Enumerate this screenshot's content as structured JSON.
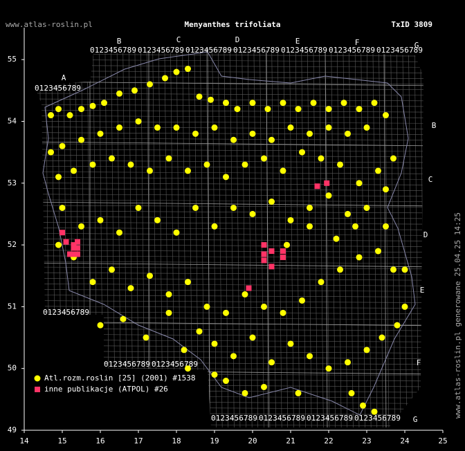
{
  "chart_data": {
    "type": "scatter",
    "source": "www.atlas-roslin.pl",
    "title": "Menyanthes trifoliata",
    "id_label": "TxID 3809",
    "footer": "www.atlas-roslin.pl generowane 25.04.25 14:25",
    "xlim": [
      14,
      25
    ],
    "ylim": [
      49,
      55.5
    ],
    "xticks": [
      14,
      15,
      16,
      17,
      18,
      19,
      20,
      21,
      22,
      23,
      24,
      25
    ],
    "yticks": [
      49,
      50,
      51,
      52,
      53,
      54,
      55
    ],
    "grid": true,
    "grid_letters": [
      "A",
      "B",
      "C",
      "D",
      "E",
      "F",
      "G"
    ],
    "grid_digits": "0123456789",
    "series": [
      {
        "name": "Atl.rozm.roslin [25] (2001) #1538",
        "color": "#ffff00",
        "marker": "circle",
        "points": [
          [
            14.7,
            54.1
          ],
          [
            14.9,
            54.2
          ],
          [
            15.2,
            54.1
          ],
          [
            15.5,
            54.2
          ],
          [
            15.8,
            54.25
          ],
          [
            16.1,
            54.3
          ],
          [
            16.5,
            54.45
          ],
          [
            16.9,
            54.5
          ],
          [
            17.3,
            54.6
          ],
          [
            17.7,
            54.7
          ],
          [
            18.0,
            54.8
          ],
          [
            18.3,
            54.85
          ],
          [
            18.6,
            54.4
          ],
          [
            18.9,
            54.35
          ],
          [
            19.3,
            54.3
          ],
          [
            19.6,
            54.2
          ],
          [
            20.0,
            54.3
          ],
          [
            20.4,
            54.2
          ],
          [
            20.8,
            54.3
          ],
          [
            21.2,
            54.2
          ],
          [
            21.6,
            54.3
          ],
          [
            22.0,
            54.2
          ],
          [
            22.4,
            54.3
          ],
          [
            22.8,
            54.2
          ],
          [
            23.2,
            54.3
          ],
          [
            23.5,
            54.1
          ],
          [
            23.0,
            53.9
          ],
          [
            22.5,
            53.8
          ],
          [
            22.0,
            53.9
          ],
          [
            21.5,
            53.8
          ],
          [
            21.0,
            53.9
          ],
          [
            20.5,
            53.7
          ],
          [
            20.0,
            53.8
          ],
          [
            19.5,
            53.7
          ],
          [
            19.0,
            53.9
          ],
          [
            18.5,
            53.8
          ],
          [
            18.0,
            53.9
          ],
          [
            17.5,
            53.9
          ],
          [
            17.0,
            54.0
          ],
          [
            16.5,
            53.9
          ],
          [
            16.0,
            53.8
          ],
          [
            15.5,
            53.7
          ],
          [
            15.0,
            53.6
          ],
          [
            14.7,
            53.5
          ],
          [
            14.9,
            53.1
          ],
          [
            15.3,
            53.2
          ],
          [
            15.8,
            53.3
          ],
          [
            16.3,
            53.4
          ],
          [
            16.8,
            53.3
          ],
          [
            17.3,
            53.2
          ],
          [
            17.8,
            53.4
          ],
          [
            18.3,
            53.2
          ],
          [
            18.8,
            53.3
          ],
          [
            19.3,
            53.1
          ],
          [
            19.8,
            53.3
          ],
          [
            20.3,
            53.4
          ],
          [
            20.8,
            53.2
          ],
          [
            21.3,
            53.5
          ],
          [
            21.8,
            53.4
          ],
          [
            22.3,
            53.3
          ],
          [
            22.8,
            53.0
          ],
          [
            23.3,
            53.2
          ],
          [
            23.7,
            53.4
          ],
          [
            23.5,
            52.9
          ],
          [
            23.0,
            52.6
          ],
          [
            22.5,
            52.5
          ],
          [
            22.0,
            52.8
          ],
          [
            21.5,
            52.6
          ],
          [
            21.0,
            52.4
          ],
          [
            20.5,
            52.7
          ],
          [
            20.0,
            52.5
          ],
          [
            19.5,
            52.6
          ],
          [
            19.0,
            52.3
          ],
          [
            18.5,
            52.6
          ],
          [
            18.0,
            52.2
          ],
          [
            17.5,
            52.4
          ],
          [
            17.0,
            52.6
          ],
          [
            16.5,
            52.2
          ],
          [
            16.0,
            52.4
          ],
          [
            15.5,
            52.3
          ],
          [
            15.0,
            52.6
          ],
          [
            14.9,
            52.0
          ],
          [
            15.3,
            51.8
          ],
          [
            15.8,
            51.4
          ],
          [
            16.3,
            51.6
          ],
          [
            16.8,
            51.3
          ],
          [
            17.3,
            51.5
          ],
          [
            17.8,
            51.2
          ],
          [
            18.3,
            51.4
          ],
          [
            18.8,
            51.0
          ],
          [
            19.3,
            50.9
          ],
          [
            19.8,
            51.2
          ],
          [
            20.3,
            51.0
          ],
          [
            20.8,
            50.9
          ],
          [
            21.3,
            51.1
          ],
          [
            21.8,
            51.4
          ],
          [
            22.3,
            51.6
          ],
          [
            22.8,
            51.8
          ],
          [
            23.3,
            51.9
          ],
          [
            23.7,
            51.6
          ],
          [
            24.0,
            51.0
          ],
          [
            23.8,
            50.7
          ],
          [
            23.4,
            50.5
          ],
          [
            23.0,
            50.3
          ],
          [
            22.5,
            50.1
          ],
          [
            22.0,
            50.0
          ],
          [
            21.5,
            50.2
          ],
          [
            21.0,
            50.4
          ],
          [
            20.5,
            50.1
          ],
          [
            20.0,
            50.5
          ],
          [
            19.5,
            50.2
          ],
          [
            19.0,
            50.4
          ],
          [
            18.6,
            50.6
          ],
          [
            18.2,
            50.3
          ],
          [
            17.8,
            50.9
          ],
          [
            19.3,
            49.8
          ],
          [
            19.8,
            49.6
          ],
          [
            20.3,
            49.7
          ],
          [
            21.2,
            49.6
          ],
          [
            22.6,
            49.6
          ],
          [
            22.9,
            49.4
          ],
          [
            23.2,
            49.3
          ],
          [
            19.0,
            49.9
          ],
          [
            18.3,
            50.0
          ],
          [
            20.9,
            52.0
          ],
          [
            21.5,
            52.3
          ],
          [
            22.2,
            52.1
          ],
          [
            22.7,
            52.3
          ],
          [
            23.5,
            52.3
          ],
          [
            24.0,
            51.6
          ],
          [
            16.0,
            50.7
          ],
          [
            16.6,
            50.8
          ],
          [
            17.2,
            50.5
          ]
        ]
      },
      {
        "name": "inne publikacje (ATPOL) #26",
        "color": "#ff3366",
        "marker": "square",
        "points": [
          [
            15.0,
            52.2
          ],
          [
            15.1,
            52.05
          ],
          [
            15.3,
            51.95
          ],
          [
            15.3,
            51.85
          ],
          [
            15.4,
            51.95
          ],
          [
            15.4,
            51.85
          ],
          [
            15.2,
            51.85
          ],
          [
            15.4,
            52.05
          ],
          [
            15.3,
            52.0
          ],
          [
            20.3,
            52.0
          ],
          [
            20.3,
            51.85
          ],
          [
            20.5,
            51.9
          ],
          [
            20.5,
            51.65
          ],
          [
            20.8,
            51.9
          ],
          [
            20.8,
            51.8
          ],
          [
            19.9,
            51.3
          ],
          [
            21.7,
            52.95
          ],
          [
            21.95,
            53.0
          ],
          [
            20.3,
            51.75
          ]
        ]
      }
    ]
  }
}
